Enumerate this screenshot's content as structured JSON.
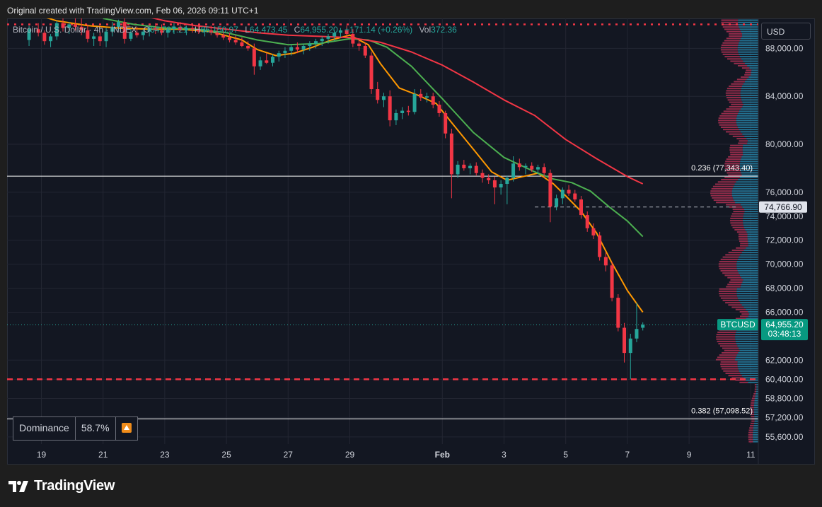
{
  "caption": "Original created with TradingView.com, Feb 06, 2026 09:11 UTC+1",
  "legend": {
    "symbol": "Bitcoin / U.S. Dollar · 4h · INDEX",
    "open_label": "O",
    "open": "64,797.21",
    "high_label": "H",
    "high": "65,150.97",
    "low_label": "L",
    "low": "64,473.45",
    "close_label": "C",
    "close": "64,955.20",
    "change": "+171.14 (+0.26%)",
    "vol_label": "Vol",
    "vol": "372.36"
  },
  "currency": "USD",
  "dominance": {
    "label": "Dominance",
    "value": "58.7%",
    "icon": "up-arrow-icon"
  },
  "brand": {
    "name": "TradingView",
    "icon": "tradingview-logo-icon"
  },
  "colors": {
    "up": "#26a69a",
    "down": "#f23645",
    "ema_fast": "#ff9800",
    "ema_mid": "#4caf50",
    "ema_slow": "#f23645",
    "price_label": "#089981",
    "fib_line": "#ffffff",
    "grid": "#232632"
  },
  "chart_data": {
    "type": "line",
    "timeframe": "4h",
    "ylim": [
      55000,
      90500
    ],
    "y_ticks": [
      {
        "v": 88000,
        "label": "88,000.00"
      },
      {
        "v": 84000,
        "label": "84,000.00"
      },
      {
        "v": 80000,
        "label": "80,000.00"
      },
      {
        "v": 76000,
        "label": "76,000.00"
      },
      {
        "v": 74000,
        "label": "74,000.00"
      },
      {
        "v": 72000,
        "label": "72,000.00"
      },
      {
        "v": 70000,
        "label": "70,000.00"
      },
      {
        "v": 68000,
        "label": "68,000.00"
      },
      {
        "v": 66000,
        "label": "66,000.00"
      },
      {
        "v": 62000,
        "label": "62,000.00"
      },
      {
        "v": 60400,
        "label": "60,400.00"
      },
      {
        "v": 58800,
        "label": "58,800.00"
      },
      {
        "v": 57200,
        "label": "57,200.00"
      },
      {
        "v": 55600,
        "label": "55,600.00"
      }
    ],
    "x_ticks": [
      {
        "day": 19,
        "label": "19"
      },
      {
        "day": 21,
        "label": "21"
      },
      {
        "day": 23,
        "label": "23"
      },
      {
        "day": 25,
        "label": "25"
      },
      {
        "day": 27,
        "label": "27"
      },
      {
        "day": 29,
        "label": "29"
      },
      {
        "day": 32,
        "label": "Feb",
        "bold": true
      },
      {
        "day": 34,
        "label": "3"
      },
      {
        "day": 36,
        "label": "5"
      },
      {
        "day": 38,
        "label": "7"
      },
      {
        "day": 40,
        "label": "9"
      },
      {
        "day": 42,
        "label": "11"
      }
    ],
    "fib_levels": [
      {
        "price": 77343.4,
        "label": "0.236 (77,343.40)"
      },
      {
        "price": 57098.52,
        "label": "0.382 (57,098.52)"
      }
    ],
    "horizontal_levels": [
      {
        "price": 90000,
        "style": "dotted"
      },
      {
        "price": 60400,
        "style": "dashed"
      }
    ],
    "marker_line": {
      "price": 74766.9,
      "label": "74,766.90",
      "from_day": 35.0
    },
    "last_price": {
      "symbol": "BTCUSD",
      "price": 64955.2,
      "label": "64,955.20",
      "countdown": "03:48:13"
    },
    "candles": [
      [
        18.6,
        88700,
        89900,
        88200,
        89600
      ],
      [
        18.9,
        89600,
        90100,
        89000,
        89300
      ],
      [
        19.1,
        89300,
        89500,
        88300,
        88600
      ],
      [
        19.3,
        88600,
        89200,
        88100,
        89000
      ],
      [
        19.5,
        89000,
        90300,
        88700,
        90100
      ],
      [
        19.7,
        90100,
        90600,
        89400,
        89700
      ],
      [
        19.9,
        89700,
        90200,
        89200,
        90000
      ],
      [
        20.1,
        90000,
        90500,
        89500,
        89800
      ],
      [
        20.3,
        89800,
        91500,
        89100,
        89500
      ],
      [
        20.5,
        89500,
        90000,
        88500,
        88800
      ],
      [
        20.7,
        88800,
        89300,
        88200,
        89000
      ],
      [
        20.9,
        89000,
        89400,
        88200,
        88600
      ],
      [
        21.1,
        88600,
        89700,
        88100,
        89400
      ],
      [
        21.3,
        89400,
        90200,
        89000,
        89800
      ],
      [
        21.5,
        89800,
        90400,
        89500,
        90200
      ],
      [
        21.7,
        90200,
        90500,
        88400,
        88800
      ],
      [
        21.9,
        88800,
        89600,
        88600,
        89300
      ],
      [
        22.1,
        89300,
        89800,
        88900,
        89100
      ],
      [
        22.3,
        89100,
        89600,
        88700,
        89400
      ],
      [
        22.5,
        89400,
        89900,
        89000,
        89700
      ],
      [
        22.7,
        89700,
        90100,
        89200,
        89500
      ],
      [
        22.9,
        89500,
        90000,
        89100,
        89300
      ],
      [
        23.1,
        89300,
        89800,
        88900,
        89600
      ],
      [
        23.3,
        89600,
        90100,
        89200,
        89800
      ],
      [
        23.5,
        89800,
        90200,
        89300,
        89500
      ],
      [
        23.7,
        89500,
        89900,
        89100,
        89700
      ],
      [
        23.9,
        89700,
        90100,
        89300,
        89600
      ],
      [
        24.1,
        89600,
        90000,
        89200,
        89400
      ],
      [
        24.3,
        89400,
        89800,
        89000,
        89500
      ],
      [
        24.5,
        89500,
        89900,
        89100,
        89300
      ],
      [
        24.7,
        89300,
        89700,
        88900,
        89100
      ],
      [
        24.9,
        89100,
        89500,
        88700,
        88900
      ],
      [
        25.1,
        88900,
        89300,
        88500,
        88700
      ],
      [
        25.3,
        88700,
        89100,
        88300,
        88500
      ],
      [
        25.5,
        88500,
        88900,
        88100,
        88200
      ],
      [
        25.7,
        88200,
        88600,
        87800,
        88000
      ],
      [
        25.9,
        88000,
        88400,
        85800,
        86500
      ],
      [
        26.1,
        86500,
        87300,
        86200,
        87000
      ],
      [
        26.3,
        87000,
        87600,
        86700,
        86800
      ],
      [
        26.5,
        86800,
        87500,
        86500,
        87300
      ],
      [
        26.7,
        87300,
        87800,
        86900,
        87600
      ],
      [
        26.9,
        87600,
        88100,
        87200,
        87800
      ],
      [
        27.1,
        87800,
        88300,
        87400,
        88100
      ],
      [
        27.3,
        88100,
        88500,
        87600,
        87900
      ],
      [
        27.5,
        87900,
        88400,
        87500,
        88200
      ],
      [
        27.7,
        88200,
        88600,
        87800,
        88400
      ],
      [
        27.9,
        88400,
        88800,
        88000,
        88600
      ],
      [
        28.1,
        88600,
        89000,
        88200,
        88800
      ],
      [
        28.3,
        88800,
        89200,
        88400,
        89000
      ],
      [
        28.5,
        89000,
        89500,
        88600,
        89300
      ],
      [
        28.7,
        89300,
        89700,
        88900,
        89500
      ],
      [
        28.9,
        89500,
        89900,
        89000,
        89200
      ],
      [
        29.1,
        89200,
        89600,
        88100,
        88400
      ],
      [
        29.3,
        88400,
        88800,
        87800,
        88200
      ],
      [
        29.5,
        88200,
        88500,
        87200,
        87400
      ],
      [
        29.7,
        87400,
        87700,
        84200,
        84600
      ],
      [
        29.9,
        84600,
        85200,
        83400,
        83700
      ],
      [
        30.1,
        83700,
        84300,
        83100,
        84000
      ],
      [
        30.3,
        84000,
        84500,
        81500,
        82000
      ],
      [
        30.5,
        82000,
        82900,
        81600,
        82600
      ],
      [
        30.7,
        82600,
        83100,
        82100,
        82800
      ],
      [
        30.9,
        82800,
        83200,
        82400,
        82700
      ],
      [
        31.1,
        82700,
        84600,
        82500,
        84200
      ],
      [
        31.3,
        84200,
        84600,
        83600,
        83900
      ],
      [
        31.5,
        83900,
        84300,
        83500,
        84000
      ],
      [
        31.7,
        84000,
        84300,
        83000,
        83300
      ],
      [
        31.9,
        83300,
        83600,
        82300,
        82600
      ],
      [
        32.1,
        82600,
        82800,
        80500,
        80900
      ],
      [
        32.3,
        80900,
        81300,
        75500,
        77500
      ],
      [
        32.5,
        77500,
        78600,
        77200,
        78300
      ],
      [
        32.7,
        78300,
        78700,
        77800,
        78000
      ],
      [
        32.9,
        78000,
        78400,
        77500,
        78200
      ],
      [
        33.1,
        78200,
        78500,
        77400,
        77600
      ],
      [
        33.3,
        77600,
        77900,
        76800,
        77200
      ],
      [
        33.5,
        77200,
        77500,
        76700,
        77000
      ],
      [
        33.7,
        77000,
        77300,
        75000,
        76400
      ],
      [
        33.9,
        76400,
        77000,
        75800,
        76700
      ],
      [
        34.1,
        76700,
        77400,
        75000,
        77200
      ],
      [
        34.3,
        77200,
        79000,
        76900,
        78400
      ],
      [
        34.5,
        78400,
        78800,
        77800,
        78100
      ],
      [
        34.7,
        78100,
        78400,
        77500,
        78200
      ],
      [
        34.9,
        78200,
        78500,
        77700,
        77900
      ],
      [
        35.1,
        77900,
        78300,
        77500,
        78100
      ],
      [
        35.3,
        78100,
        78400,
        77200,
        77600
      ],
      [
        35.5,
        77600,
        77900,
        73500,
        74800
      ],
      [
        35.7,
        74800,
        75800,
        74500,
        75500
      ],
      [
        35.9,
        75500,
        76400,
        75000,
        76200
      ],
      [
        36.1,
        76200,
        76600,
        75700,
        75900
      ],
      [
        36.3,
        75900,
        76200,
        75200,
        75400
      ],
      [
        36.5,
        75400,
        75700,
        73800,
        74100
      ],
      [
        36.7,
        74100,
        74400,
        72700,
        73000
      ],
      [
        36.9,
        73000,
        73400,
        72100,
        72400
      ],
      [
        37.1,
        72400,
        72700,
        70300,
        70600
      ],
      [
        37.3,
        70600,
        71000,
        69400,
        69900
      ],
      [
        37.5,
        69900,
        70200,
        66900,
        67200
      ],
      [
        37.7,
        67200,
        67500,
        64400,
        64700
      ],
      [
        37.9,
        64700,
        65100,
        61800,
        62600
      ],
      [
        38.1,
        62600,
        64200,
        60400,
        63800
      ],
      [
        38.3,
        63800,
        66800,
        63500,
        64600
      ],
      [
        38.5,
        64700,
        65150,
        64470,
        64955
      ]
    ],
    "series": [
      {
        "color": "#ff9800",
        "points": [
          [
            17.5,
            91800
          ],
          [
            18.6,
            91000
          ],
          [
            19.5,
            90300
          ],
          [
            20.5,
            89900
          ],
          [
            21.5,
            89700
          ],
          [
            22.5,
            89600
          ],
          [
            23.5,
            89600
          ],
          [
            24.5,
            89400
          ],
          [
            25.5,
            88700
          ],
          [
            26.0,
            87900
          ],
          [
            26.6,
            87400
          ],
          [
            27.2,
            87600
          ],
          [
            27.8,
            88100
          ],
          [
            28.4,
            88700
          ],
          [
            29.0,
            89100
          ],
          [
            29.6,
            88300
          ],
          [
            30.0,
            86700
          ],
          [
            30.6,
            84700
          ],
          [
            31.2,
            84100
          ],
          [
            31.8,
            83400
          ],
          [
            32.4,
            81500
          ],
          [
            33.0,
            79600
          ],
          [
            33.6,
            77700
          ],
          [
            34.1,
            77000
          ],
          [
            34.6,
            77300
          ],
          [
            35.1,
            77600
          ],
          [
            35.6,
            76700
          ],
          [
            36.0,
            75700
          ],
          [
            36.5,
            74400
          ],
          [
            37.0,
            72600
          ],
          [
            37.5,
            70100
          ],
          [
            38.0,
            67800
          ],
          [
            38.5,
            66000
          ]
        ]
      },
      {
        "color": "#4caf50",
        "points": [
          [
            21.0,
            90500
          ],
          [
            22.0,
            90000
          ],
          [
            23.0,
            89700
          ],
          [
            24.0,
            89600
          ],
          [
            25.0,
            89300
          ],
          [
            26.0,
            88700
          ],
          [
            27.0,
            88300
          ],
          [
            28.0,
            88400
          ],
          [
            29.0,
            88800
          ],
          [
            29.6,
            88700
          ],
          [
            30.2,
            88100
          ],
          [
            31.0,
            86500
          ],
          [
            32.0,
            83800
          ],
          [
            33.0,
            81000
          ],
          [
            34.0,
            78900
          ],
          [
            35.0,
            77700
          ],
          [
            35.6,
            77100
          ],
          [
            36.2,
            76800
          ],
          [
            36.8,
            76100
          ],
          [
            37.4,
            74800
          ],
          [
            38.0,
            73600
          ],
          [
            38.5,
            72300
          ]
        ]
      },
      {
        "color": "#f23645",
        "points": [
          [
            21.0,
            91600
          ],
          [
            22.0,
            90900
          ],
          [
            23.0,
            90300
          ],
          [
            24.0,
            89900
          ],
          [
            25.0,
            89600
          ],
          [
            26.0,
            89300
          ],
          [
            27.0,
            89100
          ],
          [
            28.0,
            89000
          ],
          [
            29.0,
            88900
          ],
          [
            30.0,
            88500
          ],
          [
            31.0,
            87700
          ],
          [
            32.0,
            86600
          ],
          [
            33.0,
            85200
          ],
          [
            34.0,
            83700
          ],
          [
            35.0,
            82400
          ],
          [
            36.0,
            80400
          ],
          [
            37.0,
            78800
          ],
          [
            38.0,
            77300
          ],
          [
            38.5,
            76700
          ]
        ]
      }
    ]
  }
}
